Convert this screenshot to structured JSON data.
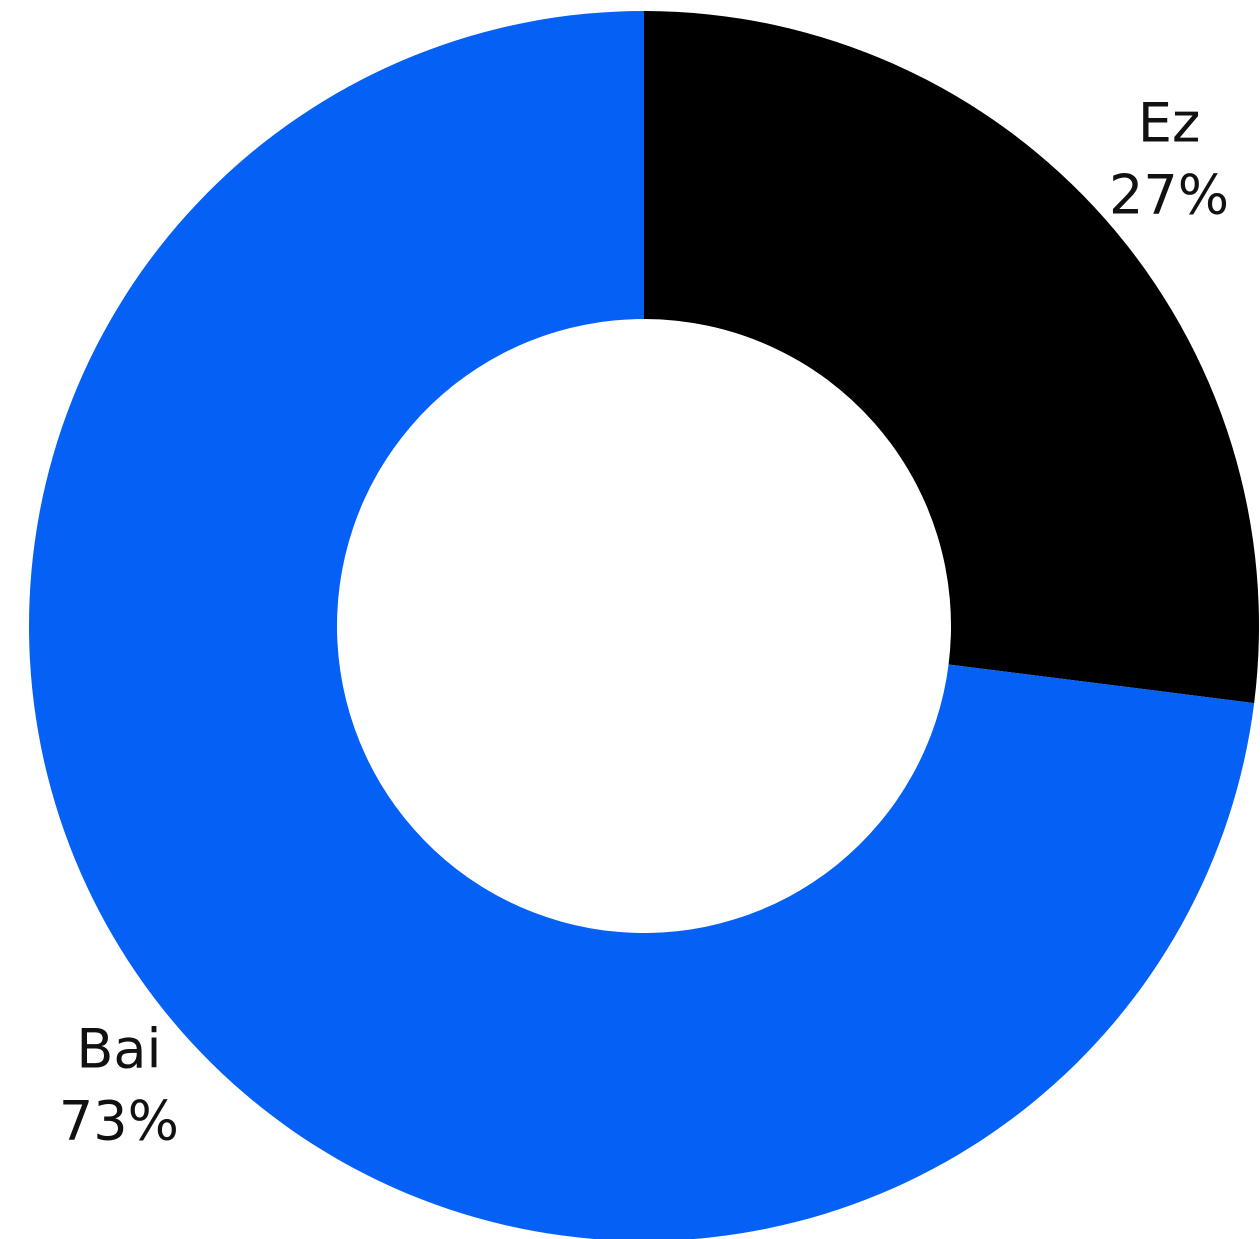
{
  "chart_data": {
    "type": "pie",
    "donut": true,
    "categories": [
      "Ez",
      "Bai"
    ],
    "values": [
      27,
      73
    ],
    "value_labels": [
      "27%",
      "73%"
    ],
    "colors": [
      "#000000",
      "#0561f5"
    ]
  }
}
